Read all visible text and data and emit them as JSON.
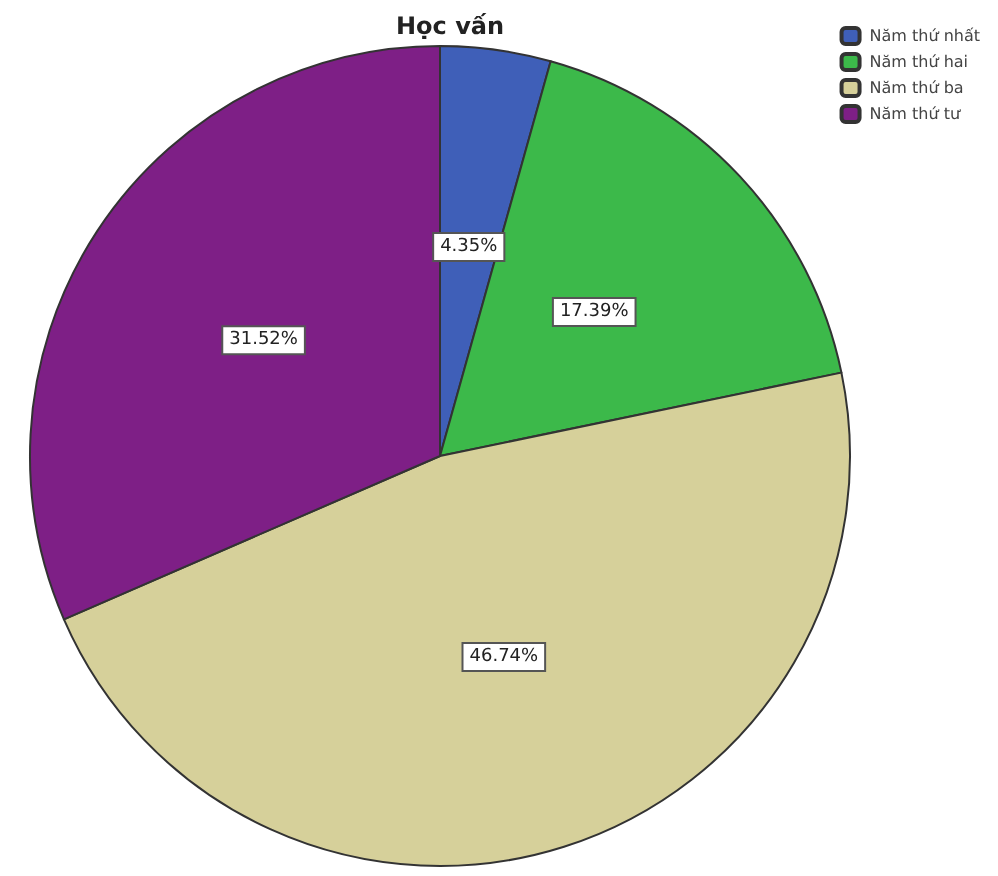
{
  "chart_data": {
    "type": "pie",
    "title": "Học vấn",
    "categories": [
      "Năm thứ nhất",
      "Năm thứ hai",
      "Năm thứ ba",
      "Năm thứ tư"
    ],
    "values": [
      4.35,
      17.39,
      46.74,
      31.52
    ],
    "colors": [
      "#3f5fb8",
      "#3cb94a",
      "#d6d09a",
      "#7e1f86"
    ],
    "value_labels": [
      "4.35%",
      "17.39%",
      "46.74%",
      "31.52%"
    ],
    "legend": "top right"
  }
}
